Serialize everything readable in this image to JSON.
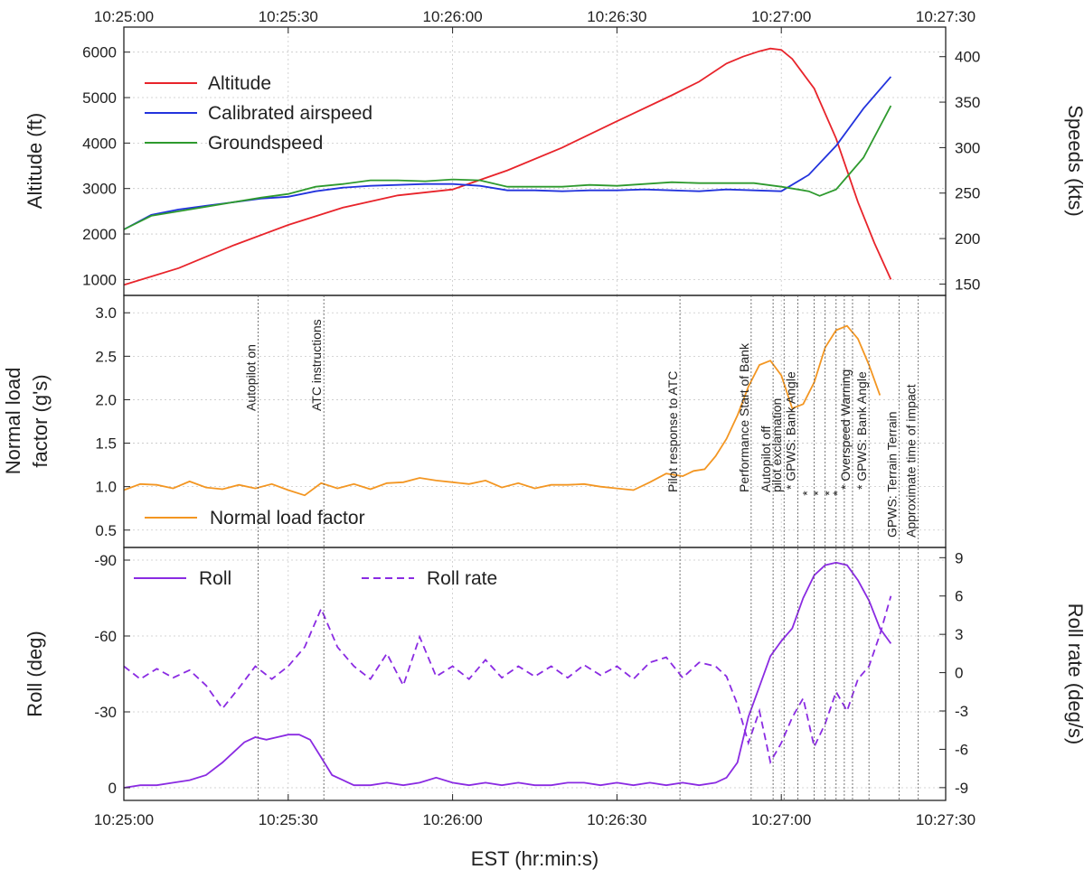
{
  "chart_data": [
    {
      "type": "line",
      "panel": "top",
      "x_ticks": [
        "10:25:00",
        "10:25:30",
        "10:26:00",
        "10:26:30",
        "10:27:00",
        "10:27:30"
      ],
      "x_range_s": [
        0,
        150
      ],
      "ylabel_left": "Altitude (ft)",
      "ylabel_right": "Speeds (kts)",
      "yticks_left": [
        "1000",
        "2000",
        "3000",
        "4000",
        "5000",
        "6000"
      ],
      "yticks_right": [
        "150",
        "200",
        "250",
        "300",
        "350",
        "400"
      ],
      "ylim_left": [
        650,
        6550
      ],
      "ylim_right": [
        137.5,
        432.5
      ],
      "grid": true,
      "legend_position": "top-left",
      "series": [
        {
          "name": "Altitude",
          "axis": "left",
          "color": "#e8242b",
          "x": [
            0,
            10,
            20,
            30,
            40,
            50,
            60,
            70,
            80,
            90,
            100,
            105,
            110,
            113,
            116,
            118,
            120,
            122,
            126,
            130,
            134,
            137,
            140
          ],
          "y": [
            880,
            1250,
            1750,
            2200,
            2580,
            2850,
            2980,
            3400,
            3900,
            4480,
            5050,
            5350,
            5750,
            5900,
            6020,
            6080,
            6050,
            5850,
            5200,
            4100,
            2700,
            1800,
            1000
          ]
        },
        {
          "name": "Calibrated airspeed",
          "axis": "right",
          "color": "#2233dd",
          "x": [
            0,
            5,
            10,
            15,
            20,
            25,
            30,
            35,
            40,
            45,
            50,
            55,
            60,
            65,
            70,
            75,
            80,
            85,
            90,
            95,
            100,
            105,
            110,
            115,
            120,
            125,
            130,
            135,
            140
          ],
          "y": [
            210,
            226,
            232,
            236,
            240,
            244,
            246,
            252,
            256,
            258,
            259,
            260,
            260,
            258,
            253,
            253,
            252,
            253,
            253,
            254,
            253,
            252,
            254,
            253,
            252,
            270,
            302,
            343,
            378
          ]
        },
        {
          "name": "Groundspeed",
          "axis": "right",
          "color": "#2e9a2e",
          "x": [
            0,
            5,
            10,
            15,
            20,
            25,
            30,
            35,
            40,
            45,
            50,
            55,
            60,
            65,
            70,
            75,
            80,
            85,
            90,
            95,
            100,
            105,
            110,
            115,
            120,
            125,
            127,
            130,
            135,
            140
          ],
          "y": [
            210,
            225,
            230,
            235,
            240,
            245,
            249,
            257,
            260,
            264,
            264,
            263,
            265,
            264,
            257,
            257,
            257,
            259,
            258,
            260,
            262,
            261,
            261,
            261,
            257,
            252,
            247,
            254,
            289,
            346
          ]
        }
      ]
    },
    {
      "type": "line",
      "panel": "middle",
      "ylabel": "Normal load\nfactor (g's)",
      "yticks": [
        "0.5",
        "1.0",
        "1.5",
        "2.0",
        "2.5",
        "3.0"
      ],
      "ylim": [
        0.3,
        3.2
      ],
      "grid": true,
      "legend_position": "bottom-left",
      "series": [
        {
          "name": "Normal load factor",
          "color": "#f39622",
          "x": [
            0,
            3,
            6,
            9,
            12,
            15,
            18,
            21,
            24,
            27,
            30,
            33,
            36,
            39,
            42,
            45,
            48,
            51,
            54,
            57,
            60,
            63,
            66,
            69,
            72,
            75,
            78,
            81,
            84,
            87,
            90,
            93,
            96,
            99,
            102,
            104,
            106,
            108,
            110,
            112,
            114,
            116,
            118,
            120,
            122,
            124,
            126,
            128,
            130,
            132,
            134,
            136,
            138
          ],
          "y": [
            0.96,
            1.03,
            1.02,
            0.98,
            1.06,
            0.99,
            0.97,
            1.02,
            0.98,
            1.03,
            0.96,
            0.9,
            1.04,
            0.98,
            1.03,
            0.97,
            1.04,
            1.05,
            1.1,
            1.07,
            1.05,
            1.03,
            1.07,
            0.99,
            1.04,
            0.98,
            1.02,
            1.02,
            1.03,
            1.0,
            0.98,
            0.96,
            1.05,
            1.15,
            1.12,
            1.18,
            1.2,
            1.35,
            1.55,
            1.82,
            2.15,
            2.4,
            2.45,
            2.28,
            1.9,
            1.95,
            2.2,
            2.6,
            2.8,
            2.85,
            2.7,
            2.4,
            2.05
          ]
        }
      ],
      "events": [
        {
          "x": 24.5,
          "label": "Autopilot on"
        },
        {
          "x": 36.5,
          "label": "ATC instructions"
        },
        {
          "x": 101.5,
          "label": "Pilot response to ATC"
        },
        {
          "x": 114.5,
          "label": "Performance Start of Bank"
        },
        {
          "x": 118.5,
          "label": "Autopilot off"
        },
        {
          "x": 120.5,
          "label": "pilot exclamation"
        },
        {
          "x": 123.0,
          "label": "* GPWS: Bank Angle"
        },
        {
          "x": 126.0,
          "label": "*"
        },
        {
          "x": 128.0,
          "label": "*"
        },
        {
          "x": 130.0,
          "label": "*"
        },
        {
          "x": 131.5,
          "label": "*"
        },
        {
          "x": 133.0,
          "label": "* Overspeed Warning"
        },
        {
          "x": 136.0,
          "label": "* GPWS: Bank Angle"
        },
        {
          "x": 141.5,
          "label": "GPWS: Terrain Terrain"
        },
        {
          "x": 145.0,
          "label": "Approximate time of impact"
        }
      ]
    },
    {
      "type": "line",
      "panel": "bottom",
      "ylabel_left": "Roll (deg)",
      "ylabel_right": "Roll rate (deg/s)",
      "yticks_left": [
        "-90",
        "-60",
        "-30",
        "0"
      ],
      "yticks_right": [
        "9",
        "6",
        "3",
        "0",
        "-3",
        "-6",
        "-9"
      ],
      "ylim_left": [
        5,
        -95
      ],
      "ylim_right": [
        -10,
        9.8
      ],
      "grid": true,
      "legend_position": "top",
      "series": [
        {
          "name": "Roll",
          "axis": "left",
          "color": "#8a2be2",
          "dash": false,
          "x": [
            0,
            3,
            6,
            9,
            12,
            15,
            18,
            20,
            22,
            24,
            26,
            28,
            30,
            32,
            34,
            36,
            38,
            40,
            42,
            45,
            48,
            51,
            54,
            57,
            60,
            63,
            66,
            69,
            72,
            75,
            78,
            81,
            84,
            87,
            90,
            93,
            96,
            99,
            102,
            105,
            108,
            110,
            112,
            114,
            116,
            118,
            120,
            122,
            124,
            126,
            128,
            130,
            132,
            134,
            136,
            138,
            140
          ],
          "y": [
            0,
            -1,
            -1,
            -2,
            -3,
            -5,
            -10,
            -14,
            -18,
            -20,
            -19,
            -20,
            -21,
            -21,
            -19,
            -12,
            -5,
            -3,
            -1,
            -1,
            -2,
            -1,
            -2,
            -4,
            -2,
            -1,
            -2,
            -1,
            -2,
            -1,
            -1,
            -2,
            -2,
            -1,
            -2,
            -1,
            -2,
            -1,
            -2,
            -1,
            -2,
            -4,
            -10,
            -28,
            -40,
            -52,
            -58,
            -63,
            -75,
            -84,
            -88,
            -89,
            -88,
            -82,
            -74,
            -63,
            -57
          ]
        },
        {
          "name": "Roll rate",
          "axis": "right",
          "color": "#8a2be2",
          "dash": true,
          "x": [
            0,
            3,
            6,
            9,
            12,
            15,
            18,
            21,
            24,
            27,
            30,
            33,
            36,
            39,
            42,
            45,
            48,
            51,
            54,
            57,
            60,
            63,
            66,
            69,
            72,
            75,
            78,
            81,
            84,
            87,
            90,
            93,
            96,
            99,
            102,
            105,
            108,
            110,
            112,
            114,
            116,
            118,
            120,
            122,
            124,
            126,
            128,
            130,
            132,
            134,
            136,
            138,
            140
          ],
          "y": [
            0.5,
            -0.5,
            0.3,
            -0.4,
            0.2,
            -1.0,
            -2.8,
            -1.2,
            0.5,
            -0.5,
            0.5,
            2.0,
            5.0,
            2.0,
            0.5,
            -0.5,
            1.5,
            -1.0,
            2.8,
            -0.3,
            0.5,
            -0.5,
            1.0,
            -0.4,
            0.5,
            -0.3,
            0.5,
            -0.4,
            0.6,
            -0.2,
            0.5,
            -0.5,
            0.8,
            1.2,
            -0.4,
            0.8,
            0.5,
            -0.3,
            -2.5,
            -5.5,
            -3.0,
            -7.0,
            -5.5,
            -3.5,
            -2.0,
            -5.8,
            -4.0,
            -1.5,
            -3.0,
            -0.5,
            0.5,
            3.0,
            6.0
          ]
        }
      ]
    }
  ],
  "xlabel": "EST (hr:min:s)"
}
